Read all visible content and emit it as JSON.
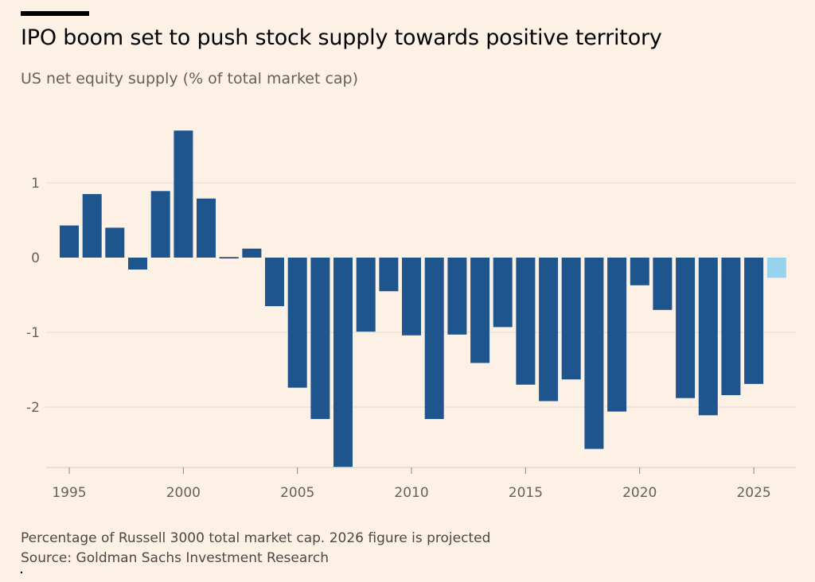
{
  "title": "IPO boom set to push stock supply towards positive territory",
  "subtitle": "US net equity supply (% of total market cap)",
  "note": "Percentage of Russell 3000 total market cap. 2026 figure is projected",
  "source": "Source: Goldman Sachs Investment Research",
  "colors": {
    "actual": "#1e558c",
    "projected": "#96d3ee",
    "grid": "#e6d9ce",
    "zero_line": "#1a1a1a"
  },
  "chart_data": {
    "type": "bar",
    "x": [
      1995,
      1996,
      1997,
      1998,
      1999,
      2000,
      2001,
      2002,
      2003,
      2004,
      2005,
      2006,
      2007,
      2008,
      2009,
      2010,
      2011,
      2012,
      2013,
      2014,
      2015,
      2016,
      2017,
      2018,
      2019,
      2020,
      2021,
      2022,
      2023,
      2024,
      2025,
      2026
    ],
    "values": [
      0.43,
      0.85,
      0.4,
      -0.16,
      0.89,
      1.7,
      0.79,
      -0.01,
      0.12,
      -0.65,
      -1.74,
      -2.16,
      -2.8,
      -0.99,
      -0.45,
      -1.04,
      -2.16,
      -1.03,
      -1.41,
      -0.93,
      -1.7,
      -1.92,
      -1.63,
      -2.56,
      -2.06,
      -0.37,
      -0.7,
      -1.88,
      -2.11,
      -1.84,
      -1.69,
      -0.27
    ],
    "projected": [
      false,
      false,
      false,
      false,
      false,
      false,
      false,
      false,
      false,
      false,
      false,
      false,
      false,
      false,
      false,
      false,
      false,
      false,
      false,
      false,
      false,
      false,
      false,
      false,
      false,
      false,
      false,
      false,
      false,
      false,
      false,
      true
    ],
    "x_ticks": [
      "1995",
      "2000",
      "2005",
      "2010",
      "2015",
      "2020",
      "2025"
    ],
    "y_ticks": [
      "1",
      "0",
      "-1",
      "-2"
    ],
    "ylim": [
      -2.8,
      1.7
    ],
    "grid": true
  }
}
